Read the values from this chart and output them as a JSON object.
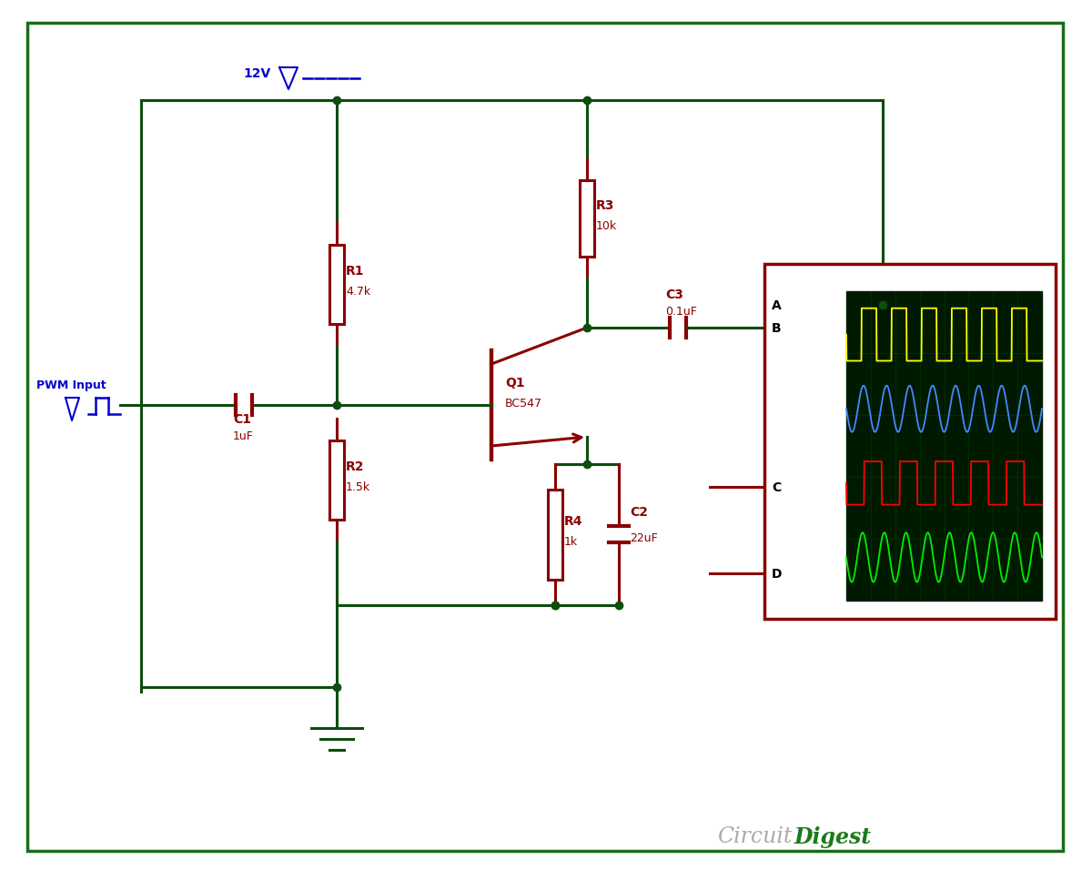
{
  "bg_color": "#ffffff",
  "border_color": "#1a6b1a",
  "wire_color": "#0d4d0d",
  "comp_color": "#8b0000",
  "label_color": "#000000",
  "pwm_color": "#0000cc",
  "scope_bg": "#001a00",
  "scope_grid": "#003300",
  "brand_gray": "#aaaaaa",
  "brand_green": "#1a7a1a",
  "figsize": [
    12.0,
    9.67
  ],
  "dpi": 100,
  "components": {
    "R1": "4.7k",
    "R2": "1.5k",
    "R3": "10k",
    "R4": "1k",
    "C1": "1uF",
    "C2": "22uF",
    "C3": "0.1uF",
    "Q1": "BC547",
    "VCC": "12V"
  }
}
